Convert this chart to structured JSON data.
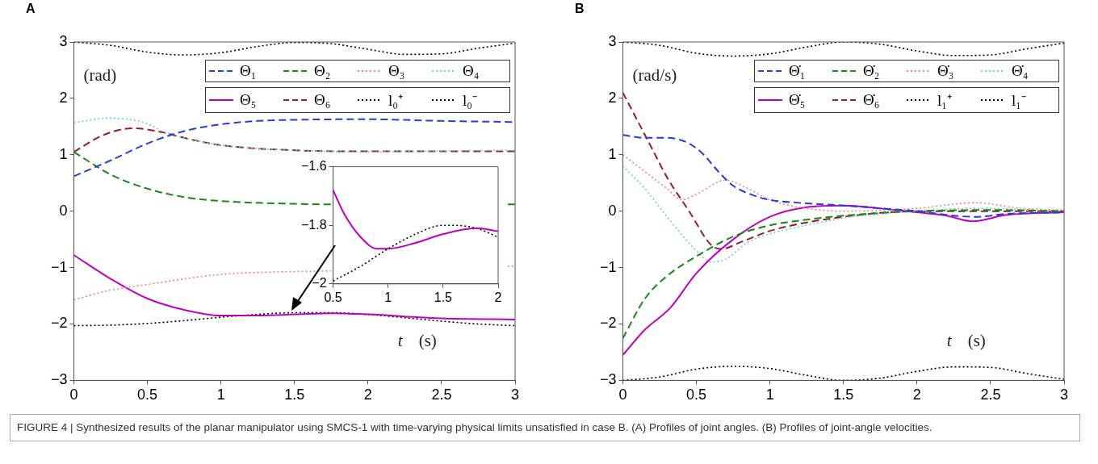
{
  "chart_data": [
    {
      "type": "line",
      "title": "A",
      "xlabel": "t (s)",
      "ylabel": "(rad)",
      "xlim": [
        0,
        3
      ],
      "ylim": [
        -3,
        3
      ],
      "xticks": [
        0,
        0.5,
        1,
        1.5,
        2,
        2.5,
        3
      ],
      "yticks": [
        -3,
        -2,
        -1,
        0,
        1,
        2,
        3
      ],
      "grid": false,
      "legend": "top right",
      "marker": "none",
      "annotations": [
        "FIGURE 4 | Synthesized results of the planar manipulator using SMCS-1 with time-varying physical limits unsatisfied in case B. (A) Profiles of joint angles. (B) Profiles of joint-angle velocities."
      ],
      "series": [
        {
          "name": "Θ₁",
          "color": "#1f3fe0",
          "line_style": "dashed",
          "x": [
            0,
            0.25,
            0.5,
            0.75,
            1,
            1.25,
            1.5,
            2,
            2.5,
            3
          ],
          "values": [
            0.62,
            0.9,
            1.2,
            1.42,
            1.54,
            1.6,
            1.62,
            1.63,
            1.6,
            1.58
          ]
        },
        {
          "name": "Θ₂",
          "color": "#138a13",
          "line_style": "dashed",
          "x": [
            0,
            0.25,
            0.5,
            0.75,
            1,
            1.5,
            1.75,
            2,
            2.5,
            2.95,
            3
          ],
          "values": [
            1.05,
            0.65,
            0.4,
            0.25,
            0.18,
            0.13,
            0.12,
            null,
            null,
            0.12,
            0.12
          ]
        },
        {
          "name": "Θ₃",
          "color": "#f08080",
          "line_style": "dotted",
          "x": [
            0,
            0.25,
            0.5,
            0.75,
            1,
            1.5,
            1.75,
            2,
            2.5,
            2.95,
            3
          ],
          "values": [
            -1.57,
            -1.4,
            -1.3,
            -1.2,
            -1.12,
            -1.07,
            -1.06,
            null,
            null,
            -0.98,
            -0.97
          ]
        },
        {
          "name": "Θ₄",
          "color": "#5fd3d3",
          "line_style": "dotted",
          "x": [
            0,
            0.25,
            0.5,
            0.6,
            0.75,
            1,
            1.5,
            2,
            2.5,
            3
          ],
          "values": [
            1.57,
            1.65,
            1.55,
            1.42,
            1.3,
            1.17,
            1.08,
            1.05,
            1.07,
            1.08
          ]
        },
        {
          "name": "Θ₅",
          "color": "#c000c0",
          "line_style": "solid",
          "x": [
            0,
            0.25,
            0.5,
            0.75,
            1,
            1.25,
            1.5,
            1.75,
            2,
            2.5,
            3
          ],
          "values": [
            -0.78,
            -1.2,
            -1.55,
            -1.75,
            -1.85,
            -1.85,
            -1.83,
            -1.81,
            -1.83,
            -1.9,
            -1.92
          ]
        },
        {
          "name": "Θ₆",
          "color": "#a01830",
          "line_style": "dashed",
          "x": [
            0,
            0.2,
            0.4,
            0.6,
            0.75,
            1,
            1.5,
            2,
            2.5,
            3
          ],
          "values": [
            1.05,
            1.35,
            1.47,
            1.4,
            1.3,
            1.17,
            1.08,
            1.06,
            1.06,
            1.06
          ]
        },
        {
          "name": "l₀⁺",
          "color": "#000000",
          "line_style": "dotted",
          "x": [
            0,
            0.25,
            0.5,
            0.75,
            1,
            1.25,
            1.5,
            1.75,
            2,
            2.25,
            2.5,
            2.75,
            3
          ],
          "values": [
            3,
            2.94,
            2.82,
            2.77,
            2.81,
            2.92,
            2.99,
            2.97,
            2.87,
            2.78,
            2.79,
            2.89,
            2.98
          ]
        },
        {
          "name": "l₀⁻",
          "color": "#000000",
          "line_style": "dotted",
          "x": [
            0,
            0.25,
            0.5,
            0.75,
            1,
            1.25,
            1.5,
            1.75,
            2,
            2.25,
            2.5,
            2.75,
            3
          ],
          "values": [
            -2.03,
            -2.02,
            -1.99,
            -1.94,
            -1.88,
            -1.83,
            -1.8,
            -1.8,
            -1.83,
            -1.89,
            -1.95,
            -2.0,
            -2.03
          ]
        }
      ]
    },
    {
      "type": "line",
      "xlim": [
        0.5,
        2
      ],
      "ylim": [
        -2,
        -1.6
      ],
      "xticks": [
        0.5,
        1,
        1.5,
        2
      ],
      "yticks": [
        -2,
        -1.8,
        -1.6
      ],
      "grid": false,
      "marker": "none",
      "series": [
        {
          "color": "#c000c0",
          "line_style": "solid",
          "x": [
            0.5,
            0.6,
            0.75,
            0.9,
            1,
            1.25,
            1.5,
            1.8,
            2
          ],
          "values": [
            -1.68,
            -1.76,
            -1.84,
            -1.88,
            -1.88,
            -1.86,
            -1.83,
            -1.81,
            -1.82
          ]
        },
        {
          "color": "#000000",
          "line_style": "dotted",
          "x": [
            0.5,
            0.75,
            1,
            1.25,
            1.5,
            1.6,
            1.8,
            2
          ],
          "values": [
            -1.99,
            -1.94,
            -1.88,
            -1.83,
            -1.8,
            -1.8,
            -1.81,
            -1.84
          ]
        }
      ]
    },
    {
      "type": "line",
      "title": "B",
      "xlabel": "t (s)",
      "ylabel": "(rad/s)",
      "xlim": [
        0,
        3
      ],
      "ylim": [
        -3,
        3
      ],
      "xticks": [
        0,
        0.5,
        1,
        1.5,
        2,
        2.5,
        3
      ],
      "yticks": [
        -3,
        -2,
        -1,
        0,
        1,
        2,
        3
      ],
      "grid": false,
      "legend": "top right",
      "marker": "none",
      "series": [
        {
          "name": "Θ̇₁",
          "color": "#1f3fe0",
          "line_style": "dashed",
          "x": [
            0,
            0.15,
            0.3,
            0.45,
            0.55,
            0.65,
            0.75,
            0.9,
            1,
            1.25,
            1.5,
            1.75,
            2,
            2.25,
            2.4,
            2.6,
            3
          ],
          "values": [
            1.35,
            1.3,
            1.3,
            1.2,
            1.0,
            0.7,
            0.45,
            0.27,
            0.2,
            0.14,
            0.1,
            0.05,
            0,
            -0.08,
            -0.1,
            -0.05,
            -0.02
          ]
        },
        {
          "name": "Θ̇₂",
          "color": "#138a13",
          "line_style": "dashed",
          "x": [
            0,
            0.15,
            0.3,
            0.5,
            0.75,
            1,
            1.25,
            1.5,
            2,
            2.5,
            3
          ],
          "values": [
            -2.25,
            -1.55,
            -1.15,
            -0.8,
            -0.45,
            -0.25,
            -0.15,
            -0.08,
            0,
            0.02,
            0
          ]
        },
        {
          "name": "Θ̇₃",
          "color": "#f08080",
          "line_style": "dotted",
          "x": [
            0,
            0.15,
            0.3,
            0.4,
            0.5,
            0.7,
            0.85,
            1,
            1.25,
            1.5,
            2,
            2.4,
            2.7,
            3
          ],
          "values": [
            1.0,
            0.7,
            0.4,
            0.2,
            0.3,
            0.55,
            0.4,
            0.2,
            0.05,
            0,
            0.05,
            0.15,
            0.05,
            0.02
          ]
        },
        {
          "name": "Θ̇₄",
          "color": "#5fd3d3",
          "line_style": "dotted",
          "x": [
            0,
            0.15,
            0.3,
            0.5,
            0.6,
            0.7,
            0.85,
            1,
            1.25,
            1.5,
            1.75,
            2,
            2.4,
            3
          ],
          "values": [
            0.8,
            0.4,
            -0.1,
            -0.7,
            -0.9,
            -0.85,
            -0.55,
            -0.4,
            -0.25,
            -0.12,
            -0.05,
            0,
            0.05,
            0
          ]
        },
        {
          "name": "Θ̇₅",
          "color": "#c000c0",
          "line_style": "solid",
          "x": [
            0,
            0.15,
            0.32,
            0.5,
            0.75,
            1,
            1.25,
            1.5,
            1.75,
            2,
            2.2,
            2.38,
            2.6,
            3
          ],
          "values": [
            -2.55,
            -2.1,
            -1.72,
            -1.1,
            -0.5,
            -0.1,
            0.07,
            0.1,
            0.05,
            -0.02,
            -0.08,
            -0.18,
            -0.07,
            -0.02
          ]
        },
        {
          "name": "Θ̇₆",
          "color": "#a01830",
          "line_style": "dashed",
          "x": [
            0,
            0.1,
            0.2,
            0.3,
            0.45,
            0.6,
            0.67,
            0.8,
            1,
            1.25,
            1.5,
            1.75,
            2,
            2.5,
            3
          ],
          "values": [
            2.1,
            1.6,
            1.1,
            0.6,
            0,
            -0.6,
            -0.67,
            -0.55,
            -0.35,
            -0.2,
            -0.1,
            -0.03,
            0,
            0,
            0
          ]
        },
        {
          "name": "l₁⁺",
          "color": "#000000",
          "line_style": "dotted",
          "x": [
            0,
            0.25,
            0.5,
            0.75,
            1,
            1.25,
            1.5,
            1.75,
            2,
            2.25,
            2.5,
            2.75,
            3
          ],
          "values": [
            3,
            2.94,
            2.8,
            2.75,
            2.79,
            2.91,
            3,
            2.96,
            2.84,
            2.76,
            2.77,
            2.88,
            2.98
          ]
        },
        {
          "name": "l₁⁻",
          "color": "#000000",
          "line_style": "dotted",
          "x": [
            0,
            0.25,
            0.5,
            0.75,
            1,
            1.25,
            1.5,
            1.75,
            2,
            2.25,
            2.5,
            2.75,
            3
          ],
          "values": [
            -3,
            -2.94,
            -2.8,
            -2.75,
            -2.79,
            -2.91,
            -3,
            -2.96,
            -2.84,
            -2.76,
            -2.77,
            -2.88,
            -2.98
          ]
        }
      ]
    }
  ]
}
